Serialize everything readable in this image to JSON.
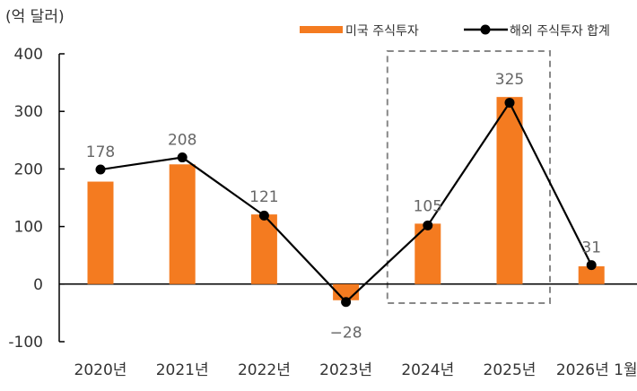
{
  "chart_data": {
    "type": "bar+line",
    "unit_label": "(억 달러)",
    "categories": [
      "2020년",
      "2021년",
      "2022년",
      "2023년",
      "2024년",
      "2025년",
      "2026년 1월"
    ],
    "series": [
      {
        "name": "미국 주식투자",
        "type": "bar",
        "color": "#F47B20",
        "values": [
          178,
          208,
          121,
          -28,
          105,
          325,
          31
        ]
      },
      {
        "name": "해외 주식투자 합계",
        "type": "line",
        "color": "#000000",
        "values": [
          199,
          220,
          119,
          -31,
          102,
          315,
          33
        ]
      }
    ],
    "data_labels": [
      "178",
      "208",
      "121",
      "−28",
      "105",
      "325",
      "31"
    ],
    "ylim": [
      -100,
      400
    ],
    "yticks": [
      400,
      300,
      200,
      100,
      0,
      -100
    ],
    "highlight_categories": [
      "2024년",
      "2025년"
    ],
    "legend_position": "top-right"
  }
}
